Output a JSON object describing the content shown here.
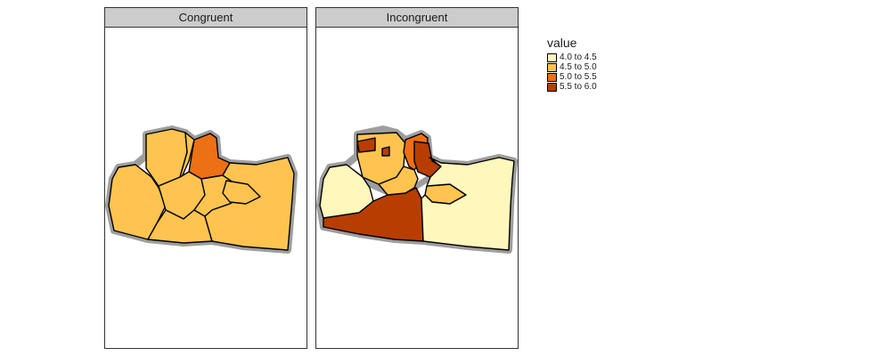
{
  "panels": [
    {
      "title": "Congruent"
    },
    {
      "title": "Incongruent"
    }
  ],
  "legend": {
    "title": "value",
    "items": [
      {
        "label": "4.0 to 4.5",
        "color": "#fff7bc"
      },
      {
        "label": "4.5 to 5.0",
        "color": "#fec44f"
      },
      {
        "label": "5.0 to 5.5",
        "color": "#ec7014"
      },
      {
        "label": "5.5 to 6.0",
        "color": "#b73e00"
      }
    ]
  },
  "colors": {
    "outline_halo": "#9e9e9e",
    "border": "#000000",
    "strip_background": "#cccccc"
  }
}
